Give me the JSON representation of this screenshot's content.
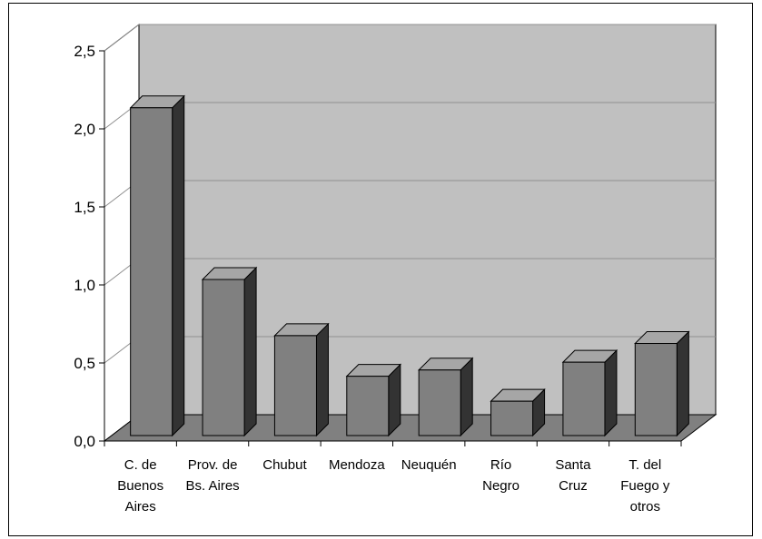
{
  "chart_data": {
    "type": "bar",
    "title": "",
    "xlabel": "",
    "ylabel": "",
    "categories": [
      [
        "C. de",
        "Buenos",
        "Aires"
      ],
      [
        "Prov. de",
        "Bs. Aires"
      ],
      [
        "Chubut"
      ],
      [
        "Mendoza"
      ],
      [
        "Neuquén"
      ],
      [
        "Río",
        "Negro"
      ],
      [
        "Santa",
        "Cruz"
      ],
      [
        "T. del",
        "Fuego y",
        "otros"
      ]
    ],
    "values": [
      2.1,
      1.0,
      0.64,
      0.38,
      0.42,
      0.22,
      0.47,
      0.59
    ],
    "yticks": [
      "0,0",
      "0,5",
      "1,0",
      "1,5",
      "2,0",
      "2,5"
    ],
    "ylim": [
      0,
      2.5
    ],
    "grid": true,
    "legend": "none",
    "style": "3d",
    "colors": {
      "back_wall": "#c0c0c0",
      "floor": "#808080",
      "bar_front": "#808080",
      "bar_top": "#a6a6a6",
      "bar_side": "#333333",
      "gridline": "#909090",
      "axis": "#000000"
    }
  }
}
